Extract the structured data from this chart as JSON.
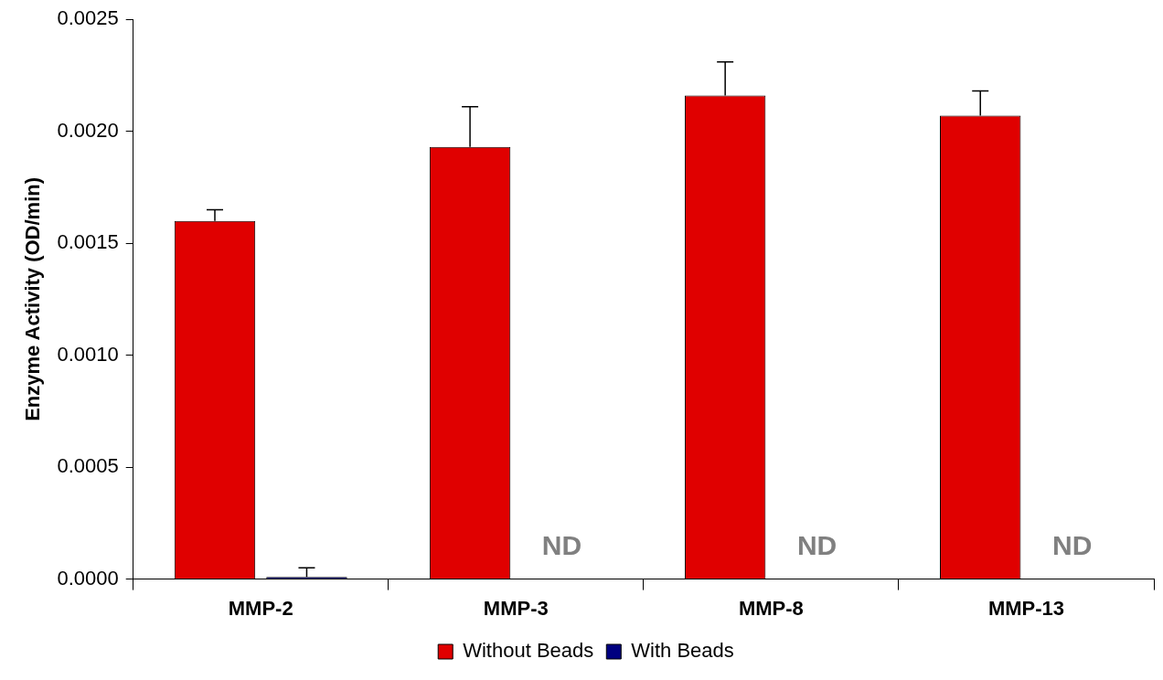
{
  "chart_data": {
    "type": "bar",
    "ylabel": "Enzyme Activity (OD/min)",
    "categories": [
      "MMP-2",
      "MMP-3",
      "MMP-8",
      "MMP-13"
    ],
    "series": [
      {
        "name": "Without Beads",
        "color": "#e00000",
        "values": [
          0.0016,
          0.00193,
          0.00216,
          0.00207
        ],
        "errors": [
          5e-05,
          0.00018,
          0.00015,
          0.00011
        ]
      },
      {
        "name": "With Beads",
        "color": "#000080",
        "values": [
          1e-05,
          0,
          0,
          0
        ],
        "errors": [
          4e-05,
          null,
          null,
          null
        ]
      }
    ],
    "ylim": [
      0,
      0.0025
    ],
    "yticks": [
      {
        "value": 0,
        "label": "0.0000"
      },
      {
        "value": 0.0005,
        "label": "0.0005"
      },
      {
        "value": 0.001,
        "label": "0.0010"
      },
      {
        "value": 0.0015,
        "label": "0.0015"
      },
      {
        "value": 0.002,
        "label": "0.0020"
      },
      {
        "value": 0.0025,
        "label": "0.0025"
      }
    ],
    "annotations": [
      {
        "text": "ND",
        "x": "MMP-3",
        "y": 0
      },
      {
        "text": "ND",
        "x": "MMP-8",
        "y": 0
      },
      {
        "text": "ND",
        "x": "MMP-13",
        "y": 0
      }
    ],
    "grid": false,
    "legend": "bottom"
  }
}
